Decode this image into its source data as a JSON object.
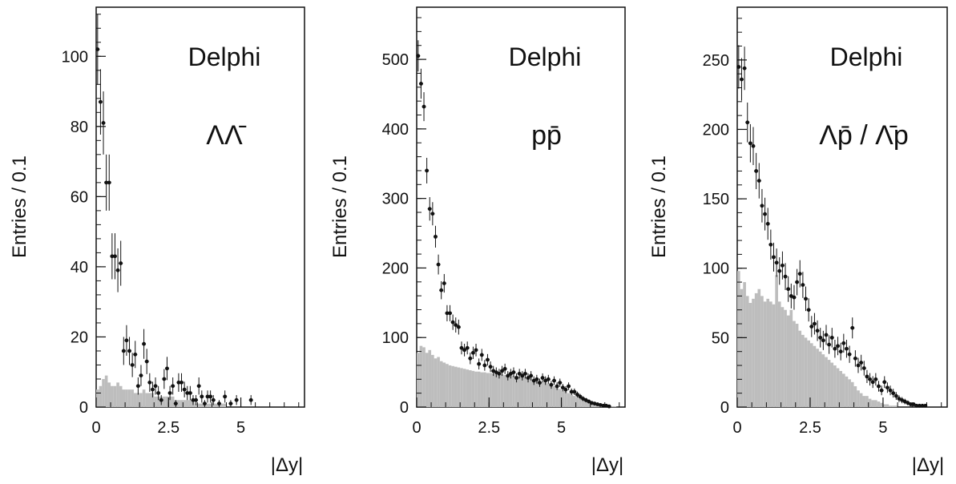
{
  "colors": {
    "background": "#ffffff",
    "frame": "#111111",
    "mc_fill": "#bdbdbd",
    "data_marker": "#111111"
  },
  "chart_data": [
    {
      "type": "scatter",
      "experiment": "Delphi",
      "process_label": "ΛΛ̄",
      "xlabel": "|Δy|",
      "ylabel": "Entries / 0.1",
      "xlim": [
        0,
        7.2
      ],
      "ylim": [
        0,
        114
      ],
      "xticks": [
        "0",
        "2.5",
        "5"
      ],
      "yticks": [
        "0",
        "20",
        "40",
        "60",
        "80",
        "100"
      ],
      "x_tick_values": [
        0,
        2.5,
        5
      ],
      "y_tick_values": [
        0,
        20,
        40,
        60,
        80,
        100
      ],
      "series": [
        {
          "kind": "mc_histogram",
          "bin_width": 0.1,
          "values": [
            5,
            6,
            8,
            9,
            7,
            6,
            6,
            7,
            6,
            5,
            5,
            5,
            5,
            4,
            4,
            4,
            5,
            4,
            4,
            4,
            3,
            3,
            3,
            3,
            3,
            3,
            3,
            2,
            2,
            2,
            2,
            2,
            2,
            2,
            1,
            1,
            1,
            1,
            1,
            1,
            1,
            1,
            1,
            1,
            1,
            0,
            0,
            0,
            0,
            0,
            0,
            0,
            0,
            0,
            0,
            0,
            0,
            0,
            0,
            0,
            0,
            0,
            0,
            0,
            0,
            0,
            0,
            0,
            0,
            0,
            0,
            0
          ]
        },
        {
          "kind": "data_points",
          "x": [
            0.05,
            0.15,
            0.25,
            0.35,
            0.45,
            0.55,
            0.65,
            0.75,
            0.85,
            0.95,
            1.05,
            1.15,
            1.25,
            1.35,
            1.45,
            1.55,
            1.65,
            1.75,
            1.85,
            1.95,
            2.05,
            2.15,
            2.25,
            2.35,
            2.45,
            2.55,
            2.65,
            2.75,
            2.85,
            2.95,
            3.05,
            3.15,
            3.25,
            3.35,
            3.45,
            3.55,
            3.65,
            3.75,
            3.85,
            3.95,
            4.05,
            4.25,
            4.45,
            4.65,
            4.85,
            5.35
          ],
          "y": [
            102,
            87,
            81,
            64,
            64,
            43,
            43,
            39,
            41,
            16,
            19,
            16,
            12,
            15,
            6,
            9,
            18,
            13,
            7,
            5,
            6,
            4,
            2,
            8,
            11,
            4,
            6,
            1,
            7,
            7,
            5,
            4,
            4,
            2,
            2,
            6,
            3,
            1,
            3,
            3,
            2,
            1,
            3,
            1,
            2,
            2
          ]
        }
      ]
    },
    {
      "type": "scatter",
      "experiment": "Delphi",
      "process_label": "pp̄",
      "xlabel": "|Δy|",
      "ylabel": "Entries / 0.1",
      "xlim": [
        0,
        7.2
      ],
      "ylim": [
        0,
        575
      ],
      "xticks": [
        "0",
        "2.5",
        "5"
      ],
      "yticks": [
        "0",
        "100",
        "200",
        "300",
        "400",
        "500"
      ],
      "x_tick_values": [
        0,
        2.5,
        5
      ],
      "y_tick_values": [
        0,
        100,
        200,
        300,
        400,
        500
      ],
      "series": [
        {
          "kind": "mc_histogram",
          "bin_width": 0.1,
          "values": [
            78,
            88,
            86,
            78,
            82,
            75,
            70,
            72,
            66,
            64,
            62,
            60,
            59,
            58,
            57,
            56,
            55,
            54,
            53,
            52,
            51,
            51,
            50,
            50,
            49,
            49,
            48,
            48,
            47,
            47,
            46,
            46,
            46,
            45,
            45,
            44,
            44,
            43,
            42,
            41,
            40,
            39,
            38,
            36,
            35,
            34,
            32,
            30,
            28,
            26,
            24,
            22,
            20,
            18,
            16,
            14,
            12,
            10,
            8,
            7,
            6,
            5,
            4,
            3,
            2,
            2,
            1,
            1,
            1,
            0,
            0,
            0
          ]
        },
        {
          "kind": "data_points",
          "x": [
            0.05,
            0.15,
            0.25,
            0.35,
            0.45,
            0.55,
            0.65,
            0.75,
            0.85,
            0.95,
            1.05,
            1.15,
            1.25,
            1.35,
            1.45,
            1.55,
            1.65,
            1.75,
            1.85,
            1.95,
            2.05,
            2.15,
            2.25,
            2.35,
            2.45,
            2.55,
            2.65,
            2.75,
            2.85,
            2.95,
            3.05,
            3.15,
            3.25,
            3.35,
            3.45,
            3.55,
            3.65,
            3.75,
            3.85,
            3.95,
            4.05,
            4.15,
            4.25,
            4.35,
            4.45,
            4.55,
            4.65,
            4.75,
            4.85,
            4.95,
            5.05,
            5.15,
            5.25,
            5.35,
            5.45,
            5.55,
            5.65,
            5.75,
            5.85,
            5.95,
            6.05,
            6.15,
            6.25,
            6.35,
            6.45,
            6.55,
            6.65
          ],
          "y": [
            505,
            465,
            432,
            340,
            285,
            278,
            245,
            205,
            168,
            178,
            135,
            135,
            122,
            118,
            115,
            85,
            82,
            85,
            70,
            78,
            82,
            62,
            75,
            60,
            68,
            58,
            52,
            50,
            48,
            52,
            55,
            45,
            48,
            50,
            42,
            48,
            45,
            48,
            42,
            45,
            38,
            40,
            35,
            42,
            38,
            40,
            32,
            38,
            30,
            35,
            28,
            25,
            30,
            22,
            22,
            18,
            15,
            12,
            10,
            8,
            6,
            5,
            4,
            3,
            2,
            2,
            1
          ]
        }
      ]
    },
    {
      "type": "scatter",
      "experiment": "Delphi",
      "process_label": "Λp̄ / Λ̄p",
      "xlabel": "|Δy|",
      "ylabel": "Entries / 0.1",
      "xlim": [
        0,
        7.2
      ],
      "ylim": [
        0,
        288
      ],
      "xticks": [
        "0",
        "2.5",
        "5"
      ],
      "yticks": [
        "0",
        "50",
        "100",
        "150",
        "200",
        "250"
      ],
      "x_tick_values": [
        0,
        2.5,
        5
      ],
      "y_tick_values": [
        0,
        50,
        100,
        150,
        200,
        250
      ],
      "series": [
        {
          "kind": "mc_histogram",
          "bin_width": 0.1,
          "values": [
            98,
            85,
            90,
            80,
            75,
            78,
            82,
            85,
            80,
            76,
            78,
            76,
            74,
            95,
            76,
            72,
            70,
            66,
            70,
            62,
            60,
            55,
            52,
            50,
            48,
            46,
            44,
            42,
            40,
            38,
            36,
            34,
            32,
            30,
            28,
            26,
            24,
            22,
            20,
            18,
            15,
            12,
            10,
            8,
            8,
            6,
            5,
            5,
            4,
            3,
            2,
            2,
            1,
            1,
            1,
            0,
            0,
            0,
            0,
            0,
            0,
            0,
            0,
            0,
            0,
            0,
            0,
            0,
            0,
            0,
            0,
            0
          ]
        },
        {
          "kind": "data_points",
          "x": [
            0.05,
            0.15,
            0.25,
            0.35,
            0.45,
            0.55,
            0.65,
            0.75,
            0.85,
            0.95,
            1.05,
            1.15,
            1.25,
            1.35,
            1.45,
            1.55,
            1.65,
            1.75,
            1.85,
            1.95,
            2.05,
            2.15,
            2.25,
            2.35,
            2.45,
            2.55,
            2.65,
            2.75,
            2.85,
            2.95,
            3.05,
            3.15,
            3.25,
            3.35,
            3.45,
            3.55,
            3.65,
            3.75,
            3.85,
            3.95,
            4.05,
            4.15,
            4.25,
            4.35,
            4.45,
            4.55,
            4.65,
            4.75,
            4.85,
            4.95,
            5.05,
            5.15,
            5.25,
            5.35,
            5.45,
            5.55,
            5.65,
            5.75,
            5.85,
            5.95,
            6.05,
            6.15,
            6.25,
            6.35,
            6.45
          ],
          "y": [
            245,
            236,
            244,
            205,
            190,
            188,
            170,
            163,
            145,
            139,
            132,
            117,
            108,
            104,
            98,
            102,
            94,
            85,
            80,
            79,
            90,
            96,
            88,
            78,
            70,
            58,
            60,
            55,
            50,
            48,
            52,
            45,
            50,
            42,
            44,
            40,
            46,
            42,
            38,
            57,
            35,
            30,
            32,
            28,
            22,
            20,
            18,
            20,
            15,
            12,
            18,
            14,
            12,
            10,
            8,
            6,
            5,
            4,
            3,
            2,
            2,
            1,
            1,
            1,
            1
          ]
        }
      ]
    }
  ]
}
